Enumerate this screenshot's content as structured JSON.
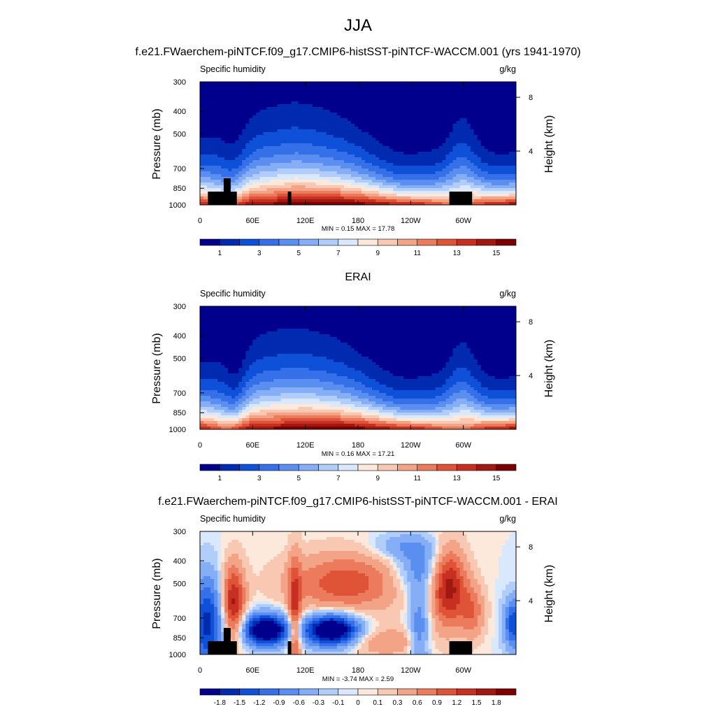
{
  "figure": {
    "title": "JJA",
    "colors": {
      "abs": [
        "#00008c",
        "#002bb0",
        "#0f50d9",
        "#3570e9",
        "#5a8ff1",
        "#86aef6",
        "#b1cdf9",
        "#d9e8fc",
        "#fde9dc",
        "#f8c8b2",
        "#f3a386",
        "#ec7a5c",
        "#df5337",
        "#c73021",
        "#a11810",
        "#7d0000"
      ],
      "diff": [
        "#00008c",
        "#002bb0",
        "#0f50d9",
        "#3570e9",
        "#5a8ff1",
        "#86aef6",
        "#b1cdf9",
        "#d9e8fc",
        "#fde9dc",
        "#f8c8b2",
        "#f3a386",
        "#ec7a5c",
        "#df5337",
        "#c73021",
        "#a11810",
        "#7d0000"
      ],
      "topography": "#000000"
    }
  },
  "chart_data": [
    {
      "type": "contour",
      "title": "f.e21.FWaerchem-piNTCF.f09_g17.CMIP6-histSST-piNTCF-WACCM.001 (yrs 1941-1970)",
      "left_label": "Specific humidity",
      "right_label": "g/kg",
      "ylabel": "Pressure (mb)",
      "ylabel_right": "Height (km)",
      "xticks": [
        "0",
        "60E",
        "120E",
        "180",
        "120W",
        "60W"
      ],
      "xtick_values": [
        0,
        60,
        120,
        180,
        240,
        300
      ],
      "xlim": [
        0,
        360
      ],
      "yticks": [
        "300",
        "400",
        "500",
        "700",
        "850",
        "1000"
      ],
      "ytick_values": [
        300,
        400,
        500,
        700,
        850,
        1000
      ],
      "ylim": [
        1000,
        300
      ],
      "height_ticks": [
        "8",
        "4"
      ],
      "height_values": [
        8,
        4
      ],
      "stats": "MIN =   0.15  MAX =   17.78",
      "min": 0.15,
      "max": 17.78,
      "colorbar": {
        "labels": [
          "1",
          "3",
          "5",
          "7",
          "9",
          "11",
          "13",
          "15"
        ],
        "levels": [
          0,
          1,
          2,
          3,
          4,
          5,
          6,
          7,
          8,
          9,
          10,
          11,
          12,
          13,
          14,
          15
        ]
      },
      "topography": true
    },
    {
      "type": "contour",
      "title": "ERAI",
      "left_label": "Specific humidity",
      "right_label": "g/kg",
      "ylabel": "Pressure (mb)",
      "ylabel_right": "Height (km)",
      "xticks": [
        "0",
        "60E",
        "120E",
        "180",
        "120W",
        "60W"
      ],
      "xtick_values": [
        0,
        60,
        120,
        180,
        240,
        300
      ],
      "xlim": [
        0,
        360
      ],
      "yticks": [
        "300",
        "400",
        "500",
        "700",
        "850",
        "1000"
      ],
      "ytick_values": [
        300,
        400,
        500,
        700,
        850,
        1000
      ],
      "ylim": [
        1000,
        300
      ],
      "height_ticks": [
        "8",
        "4"
      ],
      "height_values": [
        8,
        4
      ],
      "stats": "MIN =   0.16  MAX =   17.21",
      "min": 0.16,
      "max": 17.21,
      "colorbar": {
        "labels": [
          "1",
          "3",
          "5",
          "7",
          "9",
          "11",
          "13",
          "15"
        ],
        "levels": [
          0,
          1,
          2,
          3,
          4,
          5,
          6,
          7,
          8,
          9,
          10,
          11,
          12,
          13,
          14,
          15
        ]
      },
      "topography": false
    },
    {
      "type": "contour",
      "title": "f.e21.FWaerchem-piNTCF.f09_g17.CMIP6-histSST-piNTCF-WACCM.001 - ERAI",
      "left_label": "Specific humidity",
      "right_label": "g/kg",
      "ylabel": "Pressure (mb)",
      "ylabel_right": "Height (km)",
      "xticks": [
        "0",
        "60E",
        "120E",
        "180",
        "120W",
        "60W"
      ],
      "xtick_values": [
        0,
        60,
        120,
        180,
        240,
        300
      ],
      "xlim": [
        0,
        360
      ],
      "yticks": [
        "300",
        "400",
        "500",
        "700",
        "850",
        "1000"
      ],
      "ytick_values": [
        300,
        400,
        500,
        700,
        850,
        1000
      ],
      "ylim": [
        1000,
        300
      ],
      "height_ticks": [
        "8",
        "4"
      ],
      "height_values": [
        8,
        4
      ],
      "stats": "MIN =  -3.74  MAX =   2.59",
      "min": -3.74,
      "max": 2.59,
      "colorbar": {
        "labels": [
          "-1.8",
          "-1.5",
          "-1.2",
          "-0.9",
          "-0.6",
          "-0.3",
          "-0.1",
          "0",
          "0.1",
          "0.3",
          "0.6",
          "0.9",
          "1.2",
          "1.5",
          "1.8"
        ],
        "levels": [
          -2.1,
          -1.8,
          -1.5,
          -1.2,
          -0.9,
          -0.6,
          -0.3,
          -0.1,
          0,
          0.1,
          0.3,
          0.6,
          0.9,
          1.2,
          1.5,
          1.8
        ]
      },
      "topography": true
    }
  ]
}
